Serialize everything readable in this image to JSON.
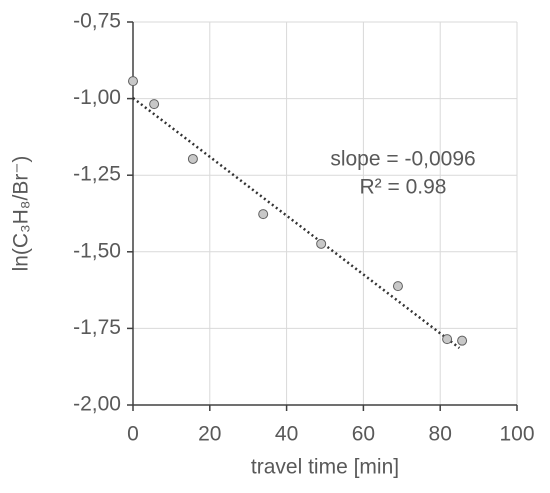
{
  "chart_data": {
    "type": "scatter",
    "x_label": "travel time [min]",
    "y_label": "ln(C₃H₈/Br⁻)",
    "points": {
      "color": "#c8c8c8",
      "x": [
        0,
        5.5,
        15.6,
        33.9,
        49,
        69,
        81.8,
        85.7
      ],
      "values": [
        -0.943,
        -1.018,
        -1.197,
        -1.377,
        -1.474,
        -1.612,
        -1.785,
        -1.79
      ]
    },
    "trendline": {
      "color": "#333333",
      "x": [
        0,
        85
      ],
      "values": [
        -0.998,
        -1.814
      ]
    },
    "annotations": [
      "slope = -0,0096",
      "R² = 0.98"
    ],
    "xlim": [
      0,
      100
    ],
    "xticks": [
      0,
      20,
      40,
      60,
      80,
      100
    ],
    "ylim": [
      -2.0,
      -0.75
    ],
    "yticks": [
      {
        "value": -2.0,
        "label": "-2,00"
      },
      {
        "value": -1.75,
        "label": "-1,75"
      },
      {
        "value": -1.5,
        "label": "-1,50"
      },
      {
        "value": -1.25,
        "label": "-1,25"
      },
      {
        "value": -1.0,
        "label": "-1,00"
      },
      {
        "value": -0.75,
        "label": "-0,75"
      }
    ],
    "grid": true
  }
}
